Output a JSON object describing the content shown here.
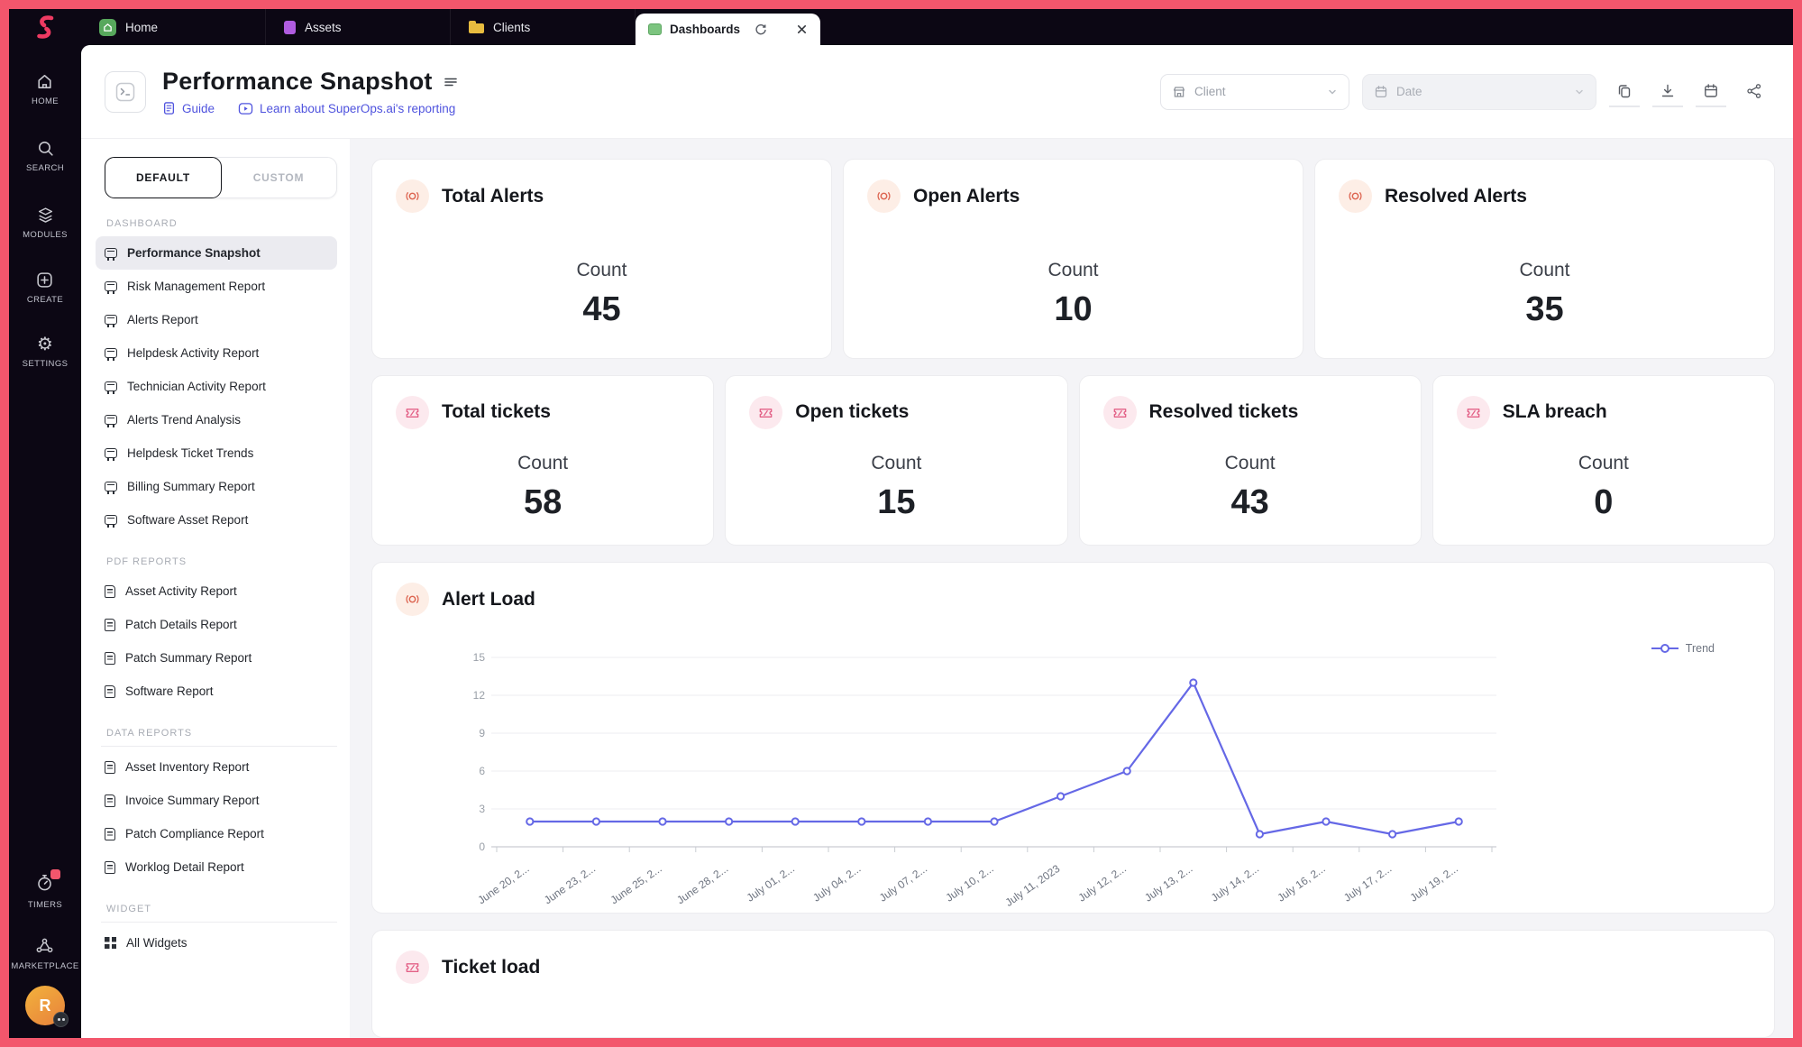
{
  "colors": {
    "frame": "#f3566c",
    "accent": "#4f53de",
    "chart_line": "#6568e6",
    "topbar_bg": "#0c0714"
  },
  "topbar": {
    "tabs": [
      {
        "label": "Home"
      },
      {
        "label": "Assets"
      },
      {
        "label": "Clients"
      }
    ],
    "active_tab": {
      "label": "Dashboards"
    }
  },
  "rail": {
    "items": [
      "HOME",
      "SEARCH",
      "MODULES",
      "CREATE",
      "SETTINGS"
    ],
    "timers_label": "TIMERS",
    "marketplace_label": "MARKETPLACE",
    "avatar_initial": "R"
  },
  "header": {
    "title": "Performance Snapshot",
    "guide_link": "Guide",
    "learn_link": "Learn about SuperOps.ai's reporting",
    "client_placeholder": "Client",
    "date_placeholder": "Date"
  },
  "sidebar": {
    "view_tabs": {
      "default": "DEFAULT",
      "custom": "CUSTOM"
    },
    "sections": [
      {
        "title": "DASHBOARD",
        "items": [
          {
            "label": "Performance Snapshot"
          },
          {
            "label": "Risk Management Report"
          },
          {
            "label": "Alerts Report"
          },
          {
            "label": "Helpdesk Activity Report"
          },
          {
            "label": "Technician Activity Report"
          },
          {
            "label": "Alerts Trend Analysis"
          },
          {
            "label": "Helpdesk Ticket Trends"
          },
          {
            "label": "Billing Summary Report"
          },
          {
            "label": "Software Asset Report"
          }
        ]
      },
      {
        "title": "PDF REPORTS",
        "items": [
          {
            "label": "Asset Activity Report"
          },
          {
            "label": "Patch Details Report"
          },
          {
            "label": "Patch Summary Report"
          },
          {
            "label": "Software Report"
          }
        ]
      },
      {
        "title": "DATA REPORTS",
        "items": [
          {
            "label": "Asset Inventory Report"
          },
          {
            "label": "Invoice Summary Report"
          },
          {
            "label": "Patch Compliance Report"
          },
          {
            "label": "Worklog Detail Report"
          }
        ]
      },
      {
        "title": "WIDGET",
        "items": [
          {
            "label": "All Widgets"
          }
        ]
      }
    ]
  },
  "cards": {
    "row1": [
      {
        "title": "Total Alerts",
        "metric_label": "Count",
        "value": "45"
      },
      {
        "title": "Open Alerts",
        "metric_label": "Count",
        "value": "10"
      },
      {
        "title": "Resolved Alerts",
        "metric_label": "Count",
        "value": "35"
      }
    ],
    "row2": [
      {
        "title": "Total tickets",
        "metric_label": "Count",
        "value": "58"
      },
      {
        "title": "Open tickets",
        "metric_label": "Count",
        "value": "15"
      },
      {
        "title": "Resolved tickets",
        "metric_label": "Count",
        "value": "43"
      },
      {
        "title": "SLA breach",
        "metric_label": "Count",
        "value": "0"
      }
    ]
  },
  "alert_load": {
    "title": "Alert Load",
    "legend": "Trend"
  },
  "ticket_load": {
    "title": "Ticket load"
  },
  "chart_data": {
    "type": "line",
    "title": "Alert Load",
    "x": [
      "June 20, 2...",
      "June 23, 2...",
      "June 25, 2...",
      "June 28, 2...",
      "July 01, 2...",
      "July 04, 2...",
      "July 07, 2...",
      "July 10, 2...",
      "July 11, 2023",
      "July 12, 2...",
      "July 13, 2...",
      "July 14, 2...",
      "July 16, 2...",
      "July 17, 2...",
      "July 19, 2..."
    ],
    "series": [
      {
        "name": "Trend",
        "values": [
          2,
          2,
          2,
          2,
          2,
          2,
          2,
          2,
          4,
          6,
          13,
          1,
          2,
          1,
          2
        ]
      }
    ],
    "ylim": [
      0,
      15
    ],
    "yticks": [
      0,
      3,
      6,
      9,
      12,
      15
    ],
    "grid": true,
    "legend_position": "top-right"
  }
}
